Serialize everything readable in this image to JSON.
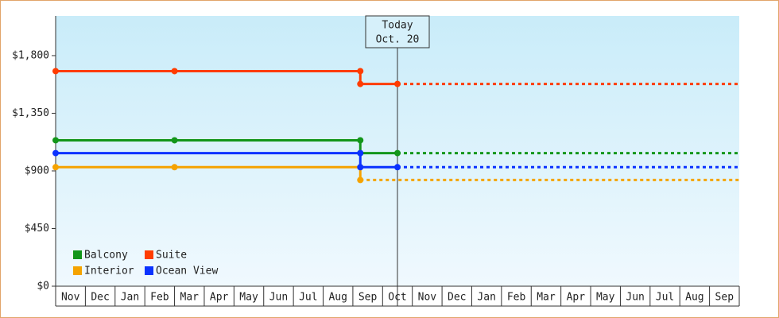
{
  "chart_data": {
    "type": "line",
    "categories": [
      "Nov",
      "Dec",
      "Jan",
      "Feb",
      "Mar",
      "Apr",
      "May",
      "Jun",
      "Jul",
      "Aug",
      "Sep",
      "Oct",
      "Nov",
      "Dec",
      "Jan",
      "Feb",
      "Mar",
      "Apr",
      "May",
      "Jun",
      "Jul",
      "Aug",
      "Sep"
    ],
    "xlim": [
      0,
      23
    ],
    "ylim": [
      0,
      2110
    ],
    "yticks": [
      {
        "value": 0,
        "label": "$0"
      },
      {
        "value": 450,
        "label": "$450"
      },
      {
        "value": 900,
        "label": "$900"
      },
      {
        "value": 1350,
        "label": "$1,350"
      },
      {
        "value": 1800,
        "label": "$1,800"
      }
    ],
    "today": {
      "x": 11.5,
      "label": "Today",
      "date": "Oct. 20"
    },
    "legend": "lower left",
    "series": [
      {
        "name": "Balcony",
        "color": "#13961a",
        "x": [
          0,
          4,
          10.25,
          10.25,
          11.5
        ],
        "values": [
          1139,
          1139,
          1139,
          1039,
          1039
        ]
      },
      {
        "name": "Suite",
        "color": "#ff3c00",
        "x": [
          0,
          4,
          10.25,
          10.25,
          11.5
        ],
        "values": [
          1679,
          1679,
          1679,
          1579,
          1579
        ]
      },
      {
        "name": "Interior",
        "color": "#f5a300",
        "x": [
          0,
          4,
          10.25,
          10.25
        ],
        "values": [
          929,
          929,
          929,
          829
        ]
      },
      {
        "name": "Ocean View",
        "color": "#0a32ff",
        "x": [
          0,
          10.25,
          10.25,
          11.5
        ],
        "values": [
          1039,
          1039,
          929,
          929
        ]
      }
    ]
  }
}
